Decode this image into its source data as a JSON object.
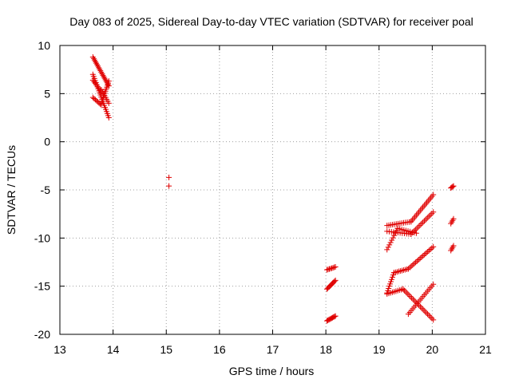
{
  "chart_data": {
    "type": "scatter",
    "title": "Day 083 of 2025, Sidereal Day-to-day VTEC variation (SDTVAR) for receiver poal",
    "xlabel": "GPS time / hours",
    "ylabel": "SDTVAR / TECUs",
    "xlim": [
      13,
      21
    ],
    "ylim": [
      -20,
      10
    ],
    "xticks": [
      13,
      14,
      15,
      16,
      17,
      18,
      19,
      20,
      21
    ],
    "yticks": [
      10,
      5,
      0,
      -5,
      -10,
      -15,
      -20
    ],
    "xtick_labels": [
      "13",
      "14",
      "15",
      "16",
      "17",
      "18",
      "19",
      "20",
      "21"
    ],
    "ytick_labels": [
      "10",
      "5",
      "0",
      "-5",
      "-10",
      "-15",
      "-20"
    ],
    "grid": true,
    "marker": "+",
    "color": "#e00000",
    "series": [
      {
        "name": "SDTVAR",
        "segments": [
          {
            "x0": 13.62,
            "y0": 8.8,
            "x1": 13.92,
            "y1": 5.8,
            "n": 20
          },
          {
            "x0": 13.62,
            "y0": 7.0,
            "x1": 13.92,
            "y1": 2.5,
            "n": 22
          },
          {
            "x0": 13.62,
            "y0": 4.6,
            "x1": 13.78,
            "y1": 3.8,
            "n": 8
          },
          {
            "x0": 13.78,
            "y0": 4.0,
            "x1": 13.92,
            "y1": 6.3,
            "n": 12
          },
          {
            "x0": 13.62,
            "y0": 6.4,
            "x1": 13.78,
            "y1": 5.2,
            "n": 8
          },
          {
            "x0": 13.78,
            "y0": 5.4,
            "x1": 13.92,
            "y1": 4.0,
            "n": 8
          },
          {
            "x0": 15.05,
            "y0": -3.7,
            "x1": 15.05,
            "y1": -3.7,
            "n": 1
          },
          {
            "x0": 15.05,
            "y0": -4.6,
            "x1": 15.05,
            "y1": -4.6,
            "n": 1
          },
          {
            "x0": 18.02,
            "y0": -18.6,
            "x1": 18.18,
            "y1": -18.1,
            "n": 10
          },
          {
            "x0": 18.02,
            "y0": -15.3,
            "x1": 18.18,
            "y1": -14.4,
            "n": 10
          },
          {
            "x0": 18.02,
            "y0": -13.3,
            "x1": 18.18,
            "y1": -13.0,
            "n": 8
          },
          {
            "x0": 19.15,
            "y0": -8.7,
            "x1": 19.6,
            "y1": -8.3,
            "n": 14
          },
          {
            "x0": 19.6,
            "y0": -8.3,
            "x1": 20.02,
            "y1": -5.5,
            "n": 18
          },
          {
            "x0": 19.15,
            "y0": -9.3,
            "x1": 19.6,
            "y1": -9.6,
            "n": 12
          },
          {
            "x0": 19.6,
            "y0": -9.6,
            "x1": 20.02,
            "y1": -7.3,
            "n": 16
          },
          {
            "x0": 19.15,
            "y0": -11.2,
            "x1": 19.35,
            "y1": -9.0,
            "n": 10
          },
          {
            "x0": 19.35,
            "y0": -9.0,
            "x1": 19.7,
            "y1": -9.5,
            "n": 10
          },
          {
            "x0": 19.15,
            "y0": -15.7,
            "x1": 19.28,
            "y1": -13.6,
            "n": 10
          },
          {
            "x0": 19.28,
            "y0": -13.6,
            "x1": 19.55,
            "y1": -13.2,
            "n": 10
          },
          {
            "x0": 19.55,
            "y0": -13.2,
            "x1": 20.02,
            "y1": -10.9,
            "n": 18
          },
          {
            "x0": 19.15,
            "y0": -15.8,
            "x1": 19.45,
            "y1": -15.3,
            "n": 10
          },
          {
            "x0": 19.45,
            "y0": -15.3,
            "x1": 20.02,
            "y1": -18.5,
            "n": 22
          },
          {
            "x0": 19.55,
            "y0": -17.9,
            "x1": 20.02,
            "y1": -14.8,
            "n": 18
          },
          {
            "x0": 20.35,
            "y0": -4.8,
            "x1": 20.4,
            "y1": -4.6,
            "n": 4
          },
          {
            "x0": 20.35,
            "y0": -8.5,
            "x1": 20.4,
            "y1": -8.0,
            "n": 4
          },
          {
            "x0": 20.35,
            "y0": -11.3,
            "x1": 20.4,
            "y1": -10.8,
            "n": 4
          }
        ]
      }
    ]
  }
}
